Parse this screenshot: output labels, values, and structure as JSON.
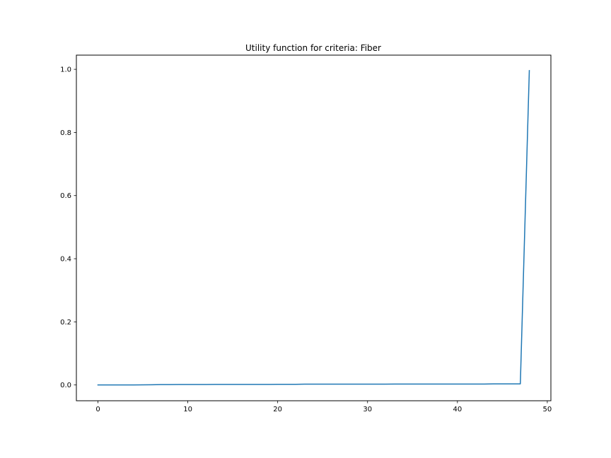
{
  "chart_data": {
    "type": "line",
    "title": "Utility function for criteria: Fiber",
    "xlabel": "",
    "ylabel": "",
    "xlim": [
      -2.4,
      50.4
    ],
    "ylim": [
      -0.05,
      1.045
    ],
    "grid": false,
    "legend": "none",
    "x_ticks": [
      0,
      10,
      20,
      30,
      40,
      50
    ],
    "x_tick_labels": [
      "0",
      "10",
      "20",
      "30",
      "40",
      "50"
    ],
    "y_ticks": [
      0.0,
      0.2,
      0.4,
      0.6,
      0.8,
      1.0
    ],
    "y_tick_labels": [
      "0.0",
      "0.2",
      "0.4",
      "0.6",
      "0.8",
      "1.0"
    ],
    "series": [
      {
        "color": "#1f77b4",
        "x": [
          0,
          1,
          2,
          3,
          4,
          5,
          6,
          7,
          8,
          9,
          10,
          11,
          12,
          13,
          14,
          15,
          16,
          17,
          18,
          19,
          20,
          21,
          22,
          23,
          24,
          25,
          26,
          27,
          28,
          29,
          30,
          31,
          32,
          33,
          34,
          35,
          36,
          37,
          38,
          39,
          40,
          41,
          42,
          43,
          44,
          45,
          46,
          47,
          48
        ],
        "y": [
          0,
          0,
          0,
          0,
          0,
          0.0003,
          0.0006,
          0.0012,
          0.0013,
          0.0014,
          0.0015,
          0.0015,
          0.0016,
          0.0017,
          0.0018,
          0.0018,
          0.0019,
          0.0019,
          0.0019,
          0.0019,
          0.002,
          0.002,
          0.002,
          0.0026,
          0.0026,
          0.0026,
          0.0026,
          0.0026,
          0.0026,
          0.0026,
          0.0027,
          0.0027,
          0.0027,
          0.0028,
          0.0028,
          0.0028,
          0.0028,
          0.0028,
          0.0028,
          0.0028,
          0.0029,
          0.0029,
          0.0029,
          0.003,
          0.0035,
          0.0035,
          0.0035,
          0.0035,
          0.996
        ]
      }
    ]
  }
}
